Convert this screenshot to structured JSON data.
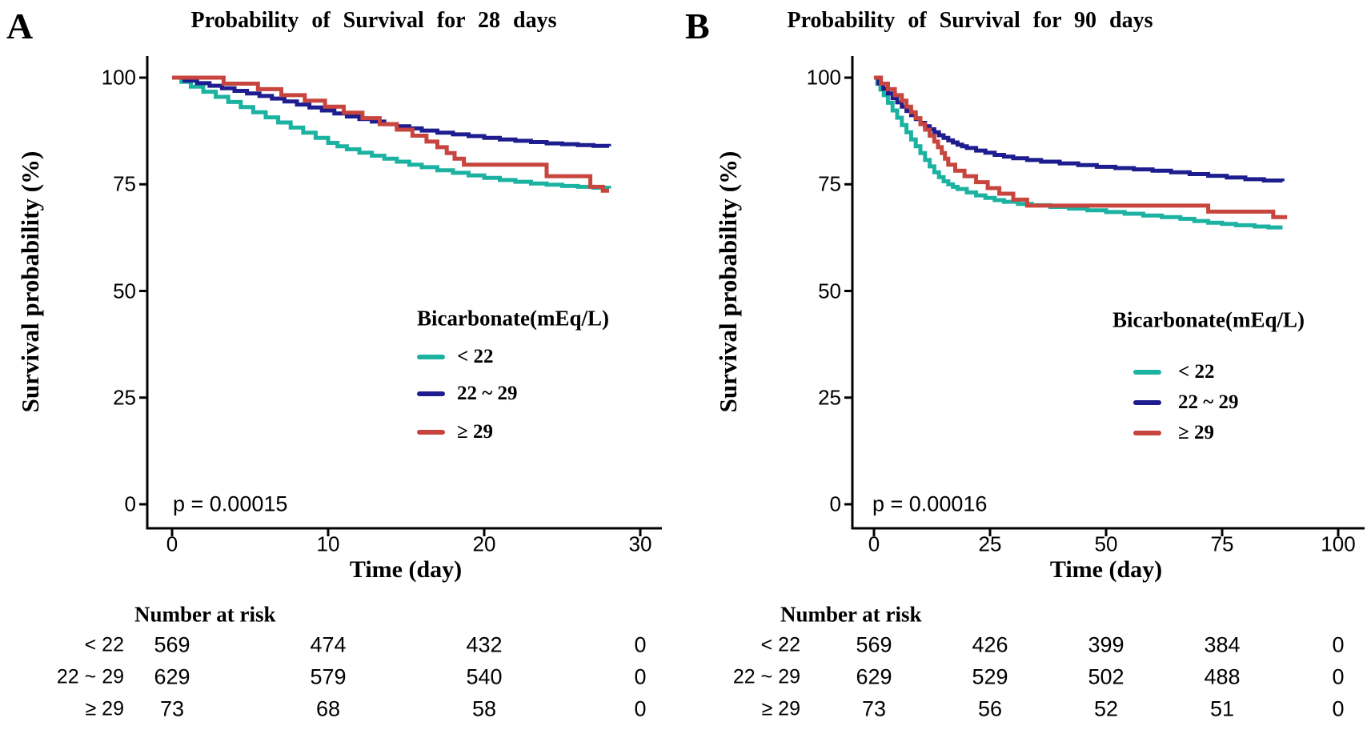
{
  "figure_type": "kaplan-meier-survival-figure",
  "background": "#ffffff",
  "text_color": "#000000",
  "axis_color": "#000000",
  "chart_data": [
    {
      "type": "line",
      "subtype": "kaplan-meier-step",
      "panel_label": "A",
      "title": "Probability of Survival for 28 days",
      "xlabel": "Time (day)",
      "ylabel": "Survival probability (%)",
      "xlim": [
        0,
        30
      ],
      "ylim": [
        0,
        100
      ],
      "xticks": [
        0,
        10,
        20,
        30
      ],
      "yticks": [
        100,
        75,
        50,
        25,
        0
      ],
      "grid": false,
      "p_value_text": "p = 0.00015",
      "legend": {
        "title": "Bicarbonate(mEq/L)",
        "position": "inside-right"
      },
      "series": [
        {
          "name": "< 22",
          "color": "#1cb2a2",
          "points": [
            [
              0,
              100
            ],
            [
              0.6,
              99
            ],
            [
              1.2,
              97.9
            ],
            [
              2,
              96.7
            ],
            [
              2.8,
              95.5
            ],
            [
              3.6,
              94.3
            ],
            [
              4.4,
              93.1
            ],
            [
              5.2,
              91.9
            ],
            [
              6,
              90.7
            ],
            [
              6.8,
              89.5
            ],
            [
              7.6,
              88.3
            ],
            [
              8.4,
              87.1
            ],
            [
              9.2,
              85.9
            ],
            [
              10,
              84.7
            ],
            [
              10.6,
              83.9
            ],
            [
              11.2,
              83.2
            ],
            [
              12,
              82.4
            ],
            [
              12.8,
              81.7
            ],
            [
              13.6,
              81
            ],
            [
              14.4,
              80.3
            ],
            [
              15.2,
              79.6
            ],
            [
              16,
              79
            ],
            [
              17,
              78.3
            ],
            [
              18,
              77.7
            ],
            [
              19,
              77.1
            ],
            [
              20,
              76.5
            ],
            [
              21,
              76
            ],
            [
              22,
              75.6
            ],
            [
              23,
              75.2
            ],
            [
              24,
              74.9
            ],
            [
              25,
              74.6
            ],
            [
              26,
              74.4
            ],
            [
              27,
              74.2
            ],
            [
              28,
              74
            ]
          ]
        },
        {
          "name": "22 ~ 29",
          "color": "#1d1d8f",
          "points": [
            [
              0,
              100
            ],
            [
              0.8,
              99.3
            ],
            [
              1.6,
              98.7
            ],
            [
              2.4,
              98.1
            ],
            [
              3.2,
              97.5
            ],
            [
              4,
              96.9
            ],
            [
              4.8,
              96.3
            ],
            [
              5.6,
              95.7
            ],
            [
              6.4,
              95.1
            ],
            [
              7.2,
              94.4
            ],
            [
              8,
              93.7
            ],
            [
              8.8,
              93
            ],
            [
              9.6,
              92.3
            ],
            [
              10.4,
              91.6
            ],
            [
              11.2,
              90.9
            ],
            [
              12,
              90.3
            ],
            [
              12.8,
              89.7
            ],
            [
              13.6,
              89.1
            ],
            [
              14.4,
              88.6
            ],
            [
              15.2,
              88.1
            ],
            [
              16,
              87.6
            ],
            [
              17,
              87.1
            ],
            [
              18,
              86.7
            ],
            [
              19,
              86.3
            ],
            [
              20,
              85.9
            ],
            [
              21,
              85.5
            ],
            [
              22,
              85.2
            ],
            [
              23,
              84.9
            ],
            [
              24,
              84.6
            ],
            [
              25,
              84.4
            ],
            [
              26,
              84.2
            ],
            [
              27,
              84
            ],
            [
              28,
              83.9
            ]
          ]
        },
        {
          "name": "≥ 29",
          "color": "#c8453f",
          "points": [
            [
              0,
              100
            ],
            [
              3.3,
              98.6
            ],
            [
              5.5,
              97.3
            ],
            [
              7,
              95.9
            ],
            [
              8.5,
              94.6
            ],
            [
              9.8,
              93.2
            ],
            [
              11,
              91.8
            ],
            [
              12.2,
              90.5
            ],
            [
              13.3,
              89.1
            ],
            [
              14.4,
              87.8
            ],
            [
              15.4,
              86.4
            ],
            [
              16.3,
              85
            ],
            [
              17,
              83.7
            ],
            [
              17.6,
              82.3
            ],
            [
              18.1,
              81
            ],
            [
              18.7,
              79.6
            ],
            [
              24,
              76.9
            ],
            [
              26.8,
              74.4
            ],
            [
              27.6,
              73.5
            ],
            [
              28,
              73.5
            ]
          ]
        }
      ],
      "risk_table": {
        "header": "Number at risk",
        "times": [
          0,
          10,
          20,
          30
        ],
        "rows": [
          {
            "label": "< 22",
            "values": [
              569,
              474,
              432,
              0
            ]
          },
          {
            "label": "22 ~ 29",
            "values": [
              629,
              579,
              540,
              0
            ]
          },
          {
            "label": "≥ 29",
            "values": [
              73,
              68,
              58,
              0
            ]
          }
        ]
      }
    },
    {
      "type": "line",
      "subtype": "kaplan-meier-step",
      "panel_label": "B",
      "title": "Probability of Survival for 90 days",
      "xlabel": "Time (day)",
      "ylabel": "Survival probability (%)",
      "xlim": [
        0,
        100
      ],
      "ylim": [
        0,
        100
      ],
      "xticks": [
        0,
        25,
        50,
        75,
        100
      ],
      "yticks": [
        100,
        75,
        50,
        25,
        0
      ],
      "grid": false,
      "p_value_text": "p = 0.00016",
      "legend": {
        "title": "Bicarbonate(mEq/L)",
        "position": "inside-right"
      },
      "series": [
        {
          "name": "< 22",
          "color": "#1cb2a2",
          "points": [
            [
              0,
              100
            ],
            [
              0.7,
              98.6
            ],
            [
              1.4,
              97.2
            ],
            [
              2.1,
              95.9
            ],
            [
              3,
              94.1
            ],
            [
              4,
              92.3
            ],
            [
              5,
              90.6
            ],
            [
              6,
              88.9
            ],
            [
              7,
              87.2
            ],
            [
              8,
              85.5
            ],
            [
              9,
              83.9
            ],
            [
              10,
              82.3
            ],
            [
              11,
              80.7
            ],
            [
              12,
              79.2
            ],
            [
              13,
              77.8
            ],
            [
              14,
              76.7
            ],
            [
              15,
              75.7
            ],
            [
              16,
              75
            ],
            [
              17,
              74.4
            ],
            [
              18,
              73.9
            ],
            [
              20,
              73.1
            ],
            [
              22,
              72.4
            ],
            [
              24,
              71.8
            ],
            [
              26,
              71.3
            ],
            [
              28,
              70.9
            ],
            [
              31,
              70.4
            ],
            [
              34,
              70.1
            ],
            [
              38,
              69.7
            ],
            [
              42,
              69.3
            ],
            [
              46,
              68.9
            ],
            [
              50,
              68.5
            ],
            [
              54,
              68.1
            ],
            [
              58,
              67.7
            ],
            [
              62,
              67.3
            ],
            [
              66,
              66.9
            ],
            [
              69,
              66.4
            ],
            [
              72,
              66
            ],
            [
              75,
              65.7
            ],
            [
              78,
              65.4
            ],
            [
              82,
              65.1
            ],
            [
              85,
              64.9
            ],
            [
              88,
              64.9
            ]
          ]
        },
        {
          "name": "22 ~ 29",
          "color": "#1d1d8f",
          "points": [
            [
              0,
              100
            ],
            [
              1,
              98.6
            ],
            [
              2,
              97.4
            ],
            [
              3,
              96.3
            ],
            [
              4,
              95.2
            ],
            [
              5,
              94.2
            ],
            [
              6,
              93.2
            ],
            [
              7,
              92.2
            ],
            [
              8,
              91.2
            ],
            [
              9,
              90.3
            ],
            [
              10,
              89.4
            ],
            [
              11,
              88.6
            ],
            [
              12,
              87.9
            ],
            [
              13,
              87.2
            ],
            [
              14,
              86.5
            ],
            [
              15,
              85.9
            ],
            [
              16,
              85.3
            ],
            [
              17,
              84.8
            ],
            [
              18,
              84.3
            ],
            [
              19,
              83.9
            ],
            [
              20,
              83.5
            ],
            [
              22,
              82.9
            ],
            [
              24,
              82.4
            ],
            [
              26,
              81.9
            ],
            [
              28,
              81.5
            ],
            [
              30,
              81.1
            ],
            [
              33,
              80.7
            ],
            [
              36,
              80.3
            ],
            [
              40,
              79.9
            ],
            [
              44,
              79.5
            ],
            [
              48,
              79.1
            ],
            [
              52,
              78.8
            ],
            [
              56,
              78.5
            ],
            [
              60,
              78.2
            ],
            [
              64,
              77.8
            ],
            [
              68,
              77.4
            ],
            [
              72,
              77
            ],
            [
              76,
              76.6
            ],
            [
              80,
              76.2
            ],
            [
              84,
              75.9
            ],
            [
              88,
              75.7
            ]
          ]
        },
        {
          "name": "≥ 29",
          "color": "#c8453f",
          "points": [
            [
              0,
              100
            ],
            [
              1.5,
              98.6
            ],
            [
              3,
              97.3
            ],
            [
              4.5,
              95.9
            ],
            [
              6,
              94.6
            ],
            [
              7,
              93.2
            ],
            [
              8,
              91.9
            ],
            [
              9,
              90.5
            ],
            [
              10,
              89.1
            ],
            [
              11,
              87.8
            ],
            [
              12,
              86.4
            ],
            [
              13,
              85
            ],
            [
              13.8,
              83.7
            ],
            [
              14.6,
              82.3
            ],
            [
              15.3,
              81
            ],
            [
              16,
              79.6
            ],
            [
              17.5,
              78.2
            ],
            [
              19.5,
              76.9
            ],
            [
              22,
              75.5
            ],
            [
              24.5,
              74.1
            ],
            [
              27,
              72.8
            ],
            [
              30,
              71.4
            ],
            [
              33,
              70
            ],
            [
              72,
              68.6
            ],
            [
              86,
              67.3
            ],
            [
              89,
              67.3
            ]
          ]
        }
      ],
      "risk_table": {
        "header": "Number at risk",
        "times": [
          0,
          25,
          50,
          75,
          100
        ],
        "rows": [
          {
            "label": "< 22",
            "values": [
              569,
              426,
              399,
              384,
              0
            ]
          },
          {
            "label": "22 ~ 29",
            "values": [
              629,
              529,
              502,
              488,
              0
            ]
          },
          {
            "label": "≥ 29",
            "values": [
              73,
              56,
              52,
              51,
              0
            ]
          }
        ]
      }
    }
  ]
}
